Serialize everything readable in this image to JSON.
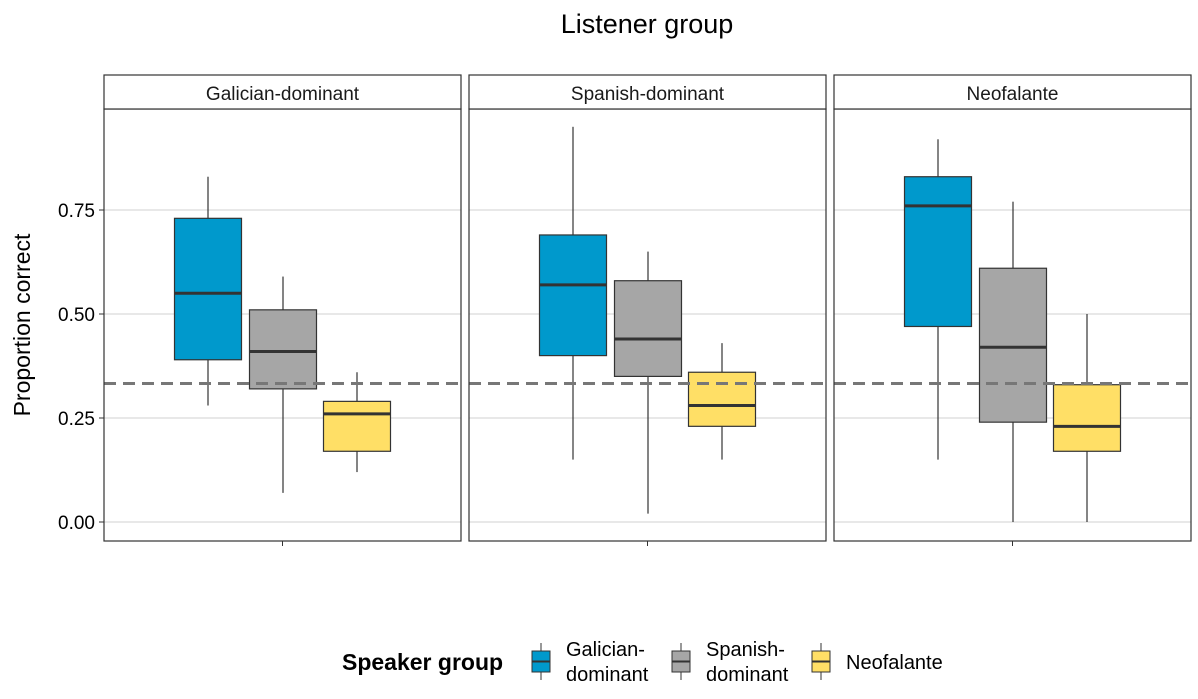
{
  "chart_data": {
    "type": "boxplot",
    "title": "Listener group",
    "ylabel": "Proportion correct",
    "xlabel": "",
    "ylim": [
      -0.04,
      1.0
    ],
    "yticks": [
      0.0,
      0.25,
      0.5,
      0.75
    ],
    "ytick_labels": [
      "0.00",
      "0.25",
      "0.50",
      "0.75"
    ],
    "reference_line": 0.333,
    "grid": true,
    "legend": {
      "title": "Speaker group",
      "position": "bottom",
      "entries": [
        {
          "label_lines": [
            "Galician-",
            "dominant"
          ],
          "color": "#0099CC"
        },
        {
          "label_lines": [
            "Spanish-",
            "dominant"
          ],
          "color": "#A6A6A6"
        },
        {
          "label_lines": [
            "Neofalante"
          ],
          "color": "#FFDF66"
        }
      ]
    },
    "panels": [
      {
        "label": "Galician-dominant",
        "boxes": [
          {
            "group": "Galician-dominant",
            "min": 0.28,
            "q1": 0.39,
            "median": 0.55,
            "q3": 0.73,
            "max": 0.83
          },
          {
            "group": "Spanish-dominant",
            "min": 0.07,
            "q1": 0.32,
            "median": 0.41,
            "q3": 0.51,
            "max": 0.59
          },
          {
            "group": "Neofalante",
            "min": 0.12,
            "q1": 0.17,
            "median": 0.26,
            "q3": 0.29,
            "max": 0.36
          }
        ]
      },
      {
        "label": "Spanish-dominant",
        "boxes": [
          {
            "group": "Galician-dominant",
            "min": 0.15,
            "q1": 0.4,
            "median": 0.57,
            "q3": 0.69,
            "max": 0.95
          },
          {
            "group": "Spanish-dominant",
            "min": 0.02,
            "q1": 0.35,
            "median": 0.44,
            "q3": 0.58,
            "max": 0.65
          },
          {
            "group": "Neofalante",
            "min": 0.15,
            "q1": 0.23,
            "median": 0.28,
            "q3": 0.36,
            "max": 0.43
          }
        ]
      },
      {
        "label": "Neofalante",
        "boxes": [
          {
            "group": "Galician-dominant",
            "min": 0.15,
            "q1": 0.47,
            "median": 0.76,
            "q3": 0.83,
            "max": 0.92
          },
          {
            "group": "Spanish-dominant",
            "min": 0.0,
            "q1": 0.24,
            "median": 0.42,
            "q3": 0.61,
            "max": 0.77
          },
          {
            "group": "Neofalante",
            "min": 0.0,
            "q1": 0.17,
            "median": 0.23,
            "q3": 0.33,
            "max": 0.5
          }
        ]
      }
    ]
  }
}
